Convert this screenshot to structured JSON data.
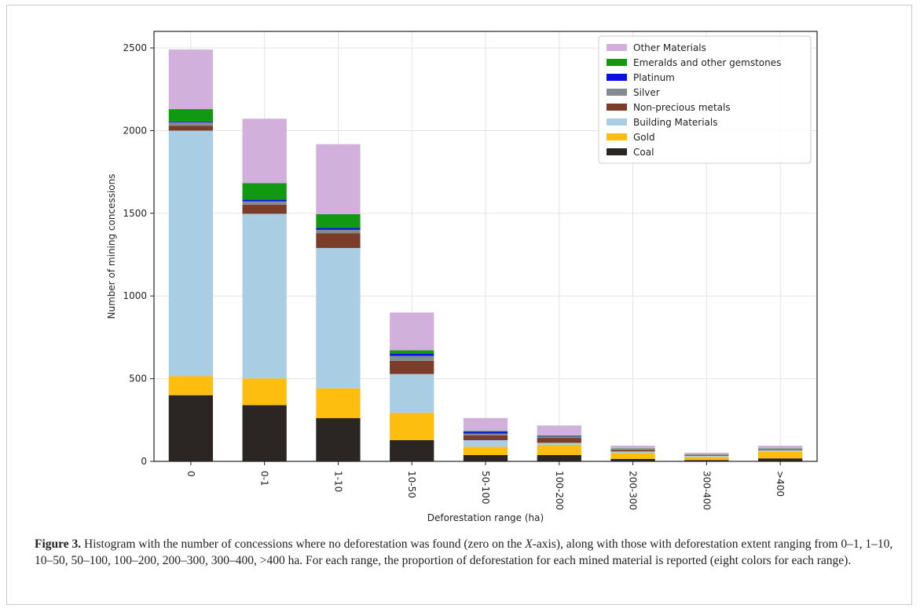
{
  "chart_data": {
    "type": "bar",
    "stacked": true,
    "xlabel": "Deforestation range (ha)",
    "ylabel": "Number of mining concessions",
    "ylim": [
      0,
      2600
    ],
    "yticks": [
      0,
      500,
      1000,
      1500,
      2000,
      2500
    ],
    "grid": true,
    "legend_position": "top-right",
    "categories": [
      "0",
      "0-1",
      "1-10",
      "10-50",
      "50-100",
      "100-200",
      "200-300",
      "300-400",
      ">400"
    ],
    "series": [
      {
        "name": "Coal",
        "color": "#2b2623",
        "values": [
          400,
          340,
          262,
          128,
          38,
          38,
          15,
          8,
          18
        ]
      },
      {
        "name": "Gold",
        "color": "#fdbe0f",
        "values": [
          115,
          162,
          180,
          165,
          50,
          62,
          35,
          18,
          42
        ]
      },
      {
        "name": "Building Materials",
        "color": "#a9cde3",
        "values": [
          1485,
          995,
          848,
          235,
          40,
          12,
          10,
          8,
          8
        ]
      },
      {
        "name": "Non-precious metals",
        "color": "#7b3d2a",
        "values": [
          30,
          55,
          90,
          80,
          30,
          30,
          10,
          5,
          5
        ]
      },
      {
        "name": "Silver",
        "color": "#838b90",
        "values": [
          20,
          20,
          20,
          30,
          10,
          8,
          5,
          3,
          3
        ]
      },
      {
        "name": "Platinum",
        "color": "#0b10e8",
        "values": [
          5,
          10,
          12,
          12,
          10,
          2,
          0,
          0,
          0
        ]
      },
      {
        "name": "Emeralds and other gemstones",
        "color": "#119a11",
        "values": [
          75,
          100,
          83,
          22,
          6,
          5,
          3,
          2,
          2
        ]
      },
      {
        "name": "Other Materials",
        "color": "#d2b0dc",
        "values": [
          360,
          390,
          423,
          228,
          78,
          60,
          17,
          8,
          17
        ]
      }
    ],
    "legend_order": [
      "Other Materials",
      "Emeralds and other gemstones",
      "Platinum",
      "Silver",
      "Non-precious metals",
      "Building Materials",
      "Gold",
      "Coal"
    ]
  },
  "caption": {
    "label": "Figure 3.",
    "text_before_axis": " Histogram with the number of concessions where no deforestation was found (zero on the ",
    "axis": "X",
    "text_after_axis": "-axis), along with those with deforestation extent ranging from 0–1, 1–10, 10–50, 50–100, 100–200, 200–300, 300–400, >400 ha. For each range, the proportion of deforestation for each mined material is reported (eight colors for each range)."
  }
}
